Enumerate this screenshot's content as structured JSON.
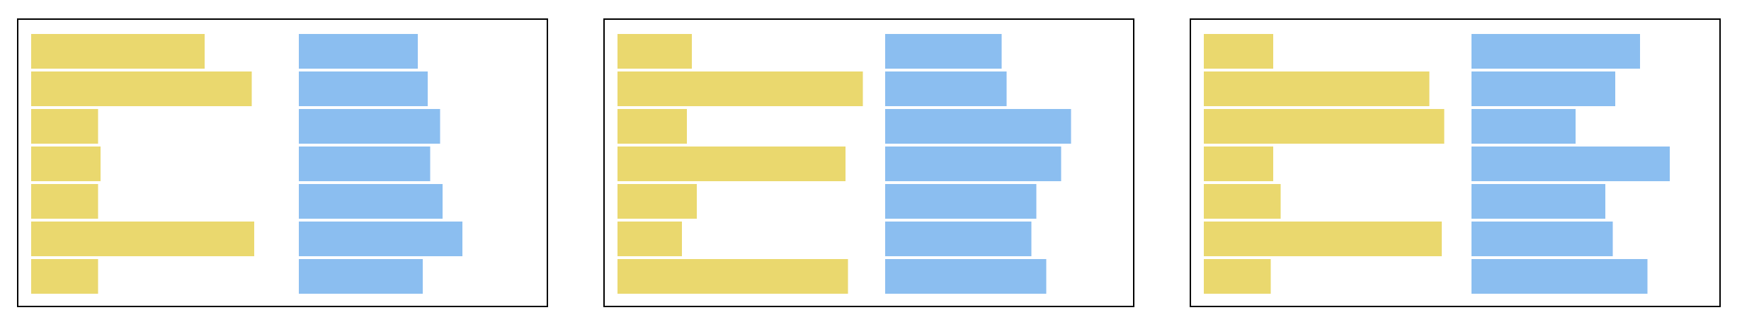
{
  "chart_data": [
    {
      "type": "bar",
      "orientation": "horizontal",
      "layout": "paired-columns",
      "xlim": [
        0,
        1
      ],
      "grid": false,
      "legend": "none",
      "series": [
        {
          "color": "#EAD86E",
          "values": [
            0.7,
            0.89,
            0.27,
            0.28,
            0.27,
            0.9,
            0.27
          ]
        },
        {
          "color": "#8BBEF0",
          "values": [
            0.48,
            0.52,
            0.57,
            0.53,
            0.58,
            0.66,
            0.5
          ]
        }
      ]
    },
    {
      "type": "bar",
      "orientation": "horizontal",
      "layout": "paired-columns",
      "xlim": [
        0,
        1
      ],
      "grid": false,
      "legend": "none",
      "series": [
        {
          "color": "#EAD86E",
          "values": [
            0.3,
            0.99,
            0.28,
            0.92,
            0.32,
            0.26,
            0.93
          ]
        },
        {
          "color": "#8BBEF0",
          "values": [
            0.47,
            0.49,
            0.75,
            0.71,
            0.61,
            0.59,
            0.65
          ]
        }
      ]
    },
    {
      "type": "bar",
      "orientation": "horizontal",
      "layout": "paired-columns",
      "xlim": [
        0,
        1
      ],
      "grid": false,
      "legend": "none",
      "series": [
        {
          "color": "#EAD86E",
          "values": [
            0.28,
            0.91,
            0.97,
            0.28,
            0.31,
            0.96,
            0.27
          ]
        },
        {
          "color": "#8BBEF0",
          "values": [
            0.68,
            0.58,
            0.42,
            0.8,
            0.54,
            0.57,
            0.71
          ]
        }
      ]
    }
  ]
}
